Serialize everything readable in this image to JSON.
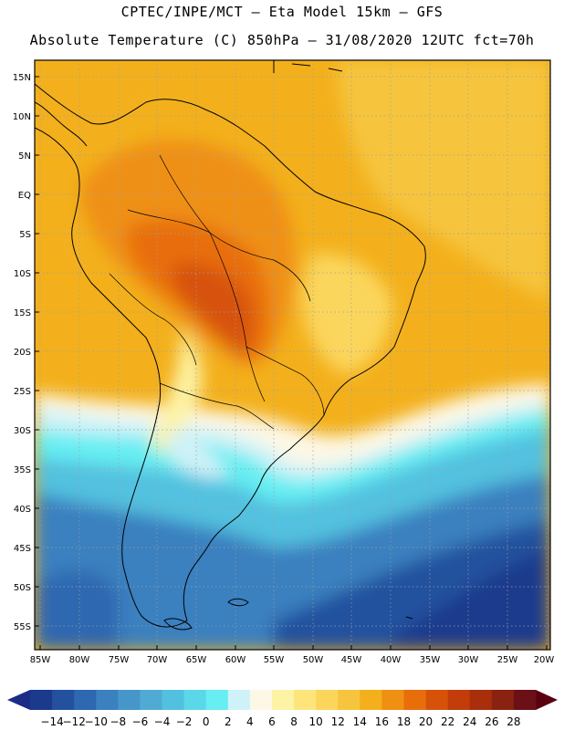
{
  "title_line1": "CPTEC/INPE/MCT –  Eta Model 15km – GFS",
  "title_line2": "Absolute Temperature (C) 850hPa – 31/08/2020 12UTC fct=70h",
  "lat_labels": [
    "15N",
    "10N",
    "5N",
    "EQ",
    "5S",
    "10S",
    "15S",
    "20S",
    "25S",
    "30S",
    "35S",
    "40S",
    "45S",
    "50S",
    "55S"
  ],
  "lon_labels": [
    "85W",
    "80W",
    "75W",
    "70W",
    "65W",
    "60W",
    "55W",
    "50W",
    "45W",
    "40W",
    "35W",
    "30W",
    "25W",
    "20W"
  ],
  "colorbar": {
    "labels": [
      "-14",
      "-12",
      "-10",
      "-8",
      "-6",
      "-4",
      "-2",
      "0",
      "2",
      "4",
      "6",
      "8",
      "10",
      "12",
      "14",
      "16",
      "18",
      "20",
      "22",
      "24",
      "26",
      "28"
    ],
    "colors": [
      "#1b3a8c",
      "#24519e",
      "#2d68b0",
      "#3b80bf",
      "#4796c9",
      "#4fabd4",
      "#52c1df",
      "#5ad8ea",
      "#66eef2",
      "#cff2f8",
      "#fdf8e6",
      "#fdf3a5",
      "#fde57c",
      "#fbd65b",
      "#f6c53d",
      "#f3b01c",
      "#ef9012",
      "#e86e0c",
      "#d75209",
      "#c23d0a",
      "#a82e0c",
      "#8a2212",
      "#6a1016"
    ],
    "end_low": "#1c2d86",
    "end_high": "#5a0010"
  }
}
